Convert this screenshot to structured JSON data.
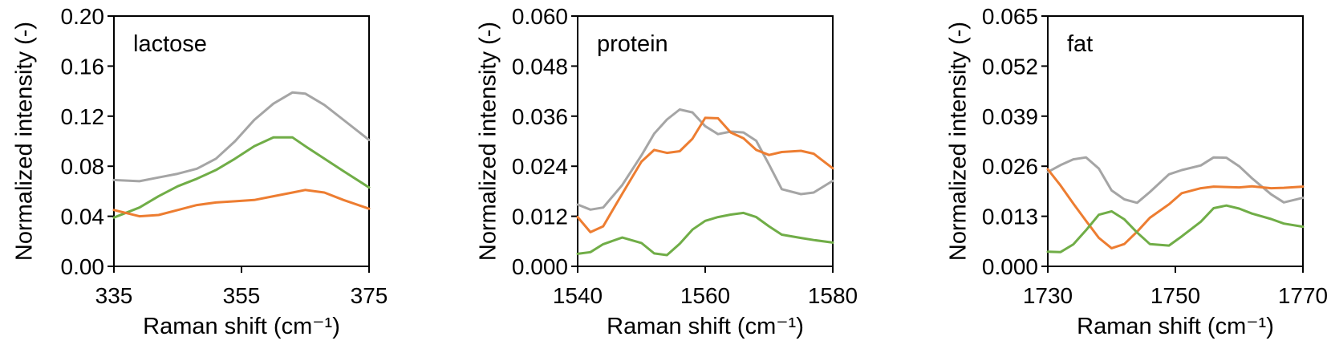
{
  "chart_data": [
    {
      "type": "line",
      "annotation": "lactose",
      "xlabel": "Raman shift (cm⁻¹)",
      "ylabel": "Normalized intensity (-)",
      "xlim": [
        335,
        375
      ],
      "ylim": [
        0,
        0.2
      ],
      "xticks": [
        "335",
        "355",
        "375"
      ],
      "yticks": [
        "0.00",
        "0.04",
        "0.08",
        "0.12",
        "0.16",
        "0.20"
      ],
      "series": [
        {
          "color": "#a5a5a5",
          "x": [
            335,
            339,
            342,
            345,
            348,
            351,
            354,
            357,
            360,
            363,
            365,
            368,
            371,
            375
          ],
          "y": [
            0.069,
            0.068,
            0.071,
            0.074,
            0.078,
            0.086,
            0.1,
            0.117,
            0.13,
            0.139,
            0.138,
            0.129,
            0.117,
            0.101
          ]
        },
        {
          "color": "#70ad47",
          "x": [
            335,
            339,
            342,
            345,
            348,
            351,
            354,
            357,
            360,
            363,
            365,
            368,
            371,
            375
          ],
          "y": [
            0.039,
            0.047,
            0.056,
            0.064,
            0.07,
            0.077,
            0.086,
            0.096,
            0.103,
            0.103,
            0.096,
            0.086,
            0.076,
            0.063
          ]
        },
        {
          "color": "#ed7d31",
          "x": [
            335,
            339,
            342,
            345,
            348,
            351,
            354,
            357,
            360,
            363,
            365,
            368,
            371,
            375
          ],
          "y": [
            0.045,
            0.04,
            0.041,
            0.045,
            0.049,
            0.051,
            0.052,
            0.053,
            0.056,
            0.059,
            0.061,
            0.059,
            0.053,
            0.046
          ]
        }
      ]
    },
    {
      "type": "line",
      "annotation": "protein",
      "xlabel": "Raman shift (cm⁻¹)",
      "ylabel": "Normalized intensity (-)",
      "xlim": [
        1540,
        1580
      ],
      "ylim": [
        0,
        0.06
      ],
      "xticks": [
        "1540",
        "1560",
        "1580"
      ],
      "yticks": [
        "0.000",
        "0.012",
        "0.024",
        "0.036",
        "0.048",
        "0.060"
      ],
      "series": [
        {
          "color": "#a5a5a5",
          "x": [
            1540,
            1542,
            1544,
            1547,
            1550,
            1552,
            1554,
            1556,
            1558,
            1560,
            1562,
            1564,
            1566,
            1568,
            1570,
            1572,
            1575,
            1577,
            1580
          ],
          "y": [
            0.0148,
            0.0136,
            0.0141,
            0.0195,
            0.0266,
            0.0318,
            0.0352,
            0.0376,
            0.0369,
            0.0336,
            0.0317,
            0.0323,
            0.0321,
            0.0301,
            0.0244,
            0.0185,
            0.0173,
            0.0177,
            0.0205
          ]
        },
        {
          "color": "#ed7d31",
          "x": [
            1540,
            1542,
            1544,
            1547,
            1550,
            1552,
            1554,
            1556,
            1558,
            1560,
            1562,
            1564,
            1566,
            1568,
            1570,
            1572,
            1575,
            1577,
            1580
          ],
          "y": [
            0.0118,
            0.0082,
            0.0096,
            0.0174,
            0.0251,
            0.0279,
            0.0272,
            0.0276,
            0.0306,
            0.0356,
            0.0355,
            0.0321,
            0.0307,
            0.0279,
            0.0267,
            0.0274,
            0.0277,
            0.027,
            0.0235
          ]
        },
        {
          "color": "#70ad47",
          "x": [
            1540,
            1542,
            1544,
            1547,
            1550,
            1552,
            1554,
            1556,
            1558,
            1560,
            1562,
            1564,
            1566,
            1568,
            1570,
            1572,
            1575,
            1577,
            1580
          ],
          "y": [
            0.003,
            0.0034,
            0.0053,
            0.0069,
            0.0056,
            0.0031,
            0.0027,
            0.0054,
            0.0088,
            0.0109,
            0.0118,
            0.0124,
            0.0128,
            0.0118,
            0.0096,
            0.0076,
            0.0068,
            0.0063,
            0.0057
          ]
        }
      ]
    },
    {
      "type": "line",
      "annotation": "fat",
      "xlabel": "Raman shift (cm⁻¹)",
      "ylabel": "Normalized intensity (-)",
      "xlim": [
        1730,
        1770
      ],
      "ylim": [
        0,
        0.065
      ],
      "xticks": [
        "1730",
        "1750",
        "1770"
      ],
      "yticks": [
        "0.000",
        "0.013",
        "0.026",
        "0.039",
        "0.052",
        "0.065"
      ],
      "series": [
        {
          "color": "#a5a5a5",
          "x": [
            1730,
            1732,
            1734,
            1736,
            1738,
            1740,
            1742,
            1744,
            1746,
            1749,
            1751,
            1754,
            1756,
            1758,
            1760,
            1762,
            1765,
            1767,
            1770
          ],
          "y": [
            0.0245,
            0.0263,
            0.0278,
            0.0283,
            0.0254,
            0.0197,
            0.0174,
            0.0165,
            0.0193,
            0.0239,
            0.025,
            0.0262,
            0.0283,
            0.0282,
            0.026,
            0.0229,
            0.0187,
            0.0166,
            0.0178
          ]
        },
        {
          "color": "#ed7d31",
          "x": [
            1730,
            1732,
            1734,
            1736,
            1738,
            1740,
            1742,
            1744,
            1746,
            1749,
            1751,
            1754,
            1756,
            1758,
            1760,
            1762,
            1765,
            1767,
            1770
          ],
          "y": [
            0.0252,
            0.021,
            0.0163,
            0.0118,
            0.0074,
            0.0047,
            0.0058,
            0.009,
            0.0126,
            0.0161,
            0.019,
            0.0203,
            0.0207,
            0.0206,
            0.0205,
            0.0208,
            0.0203,
            0.0204,
            0.0207
          ]
        },
        {
          "color": "#70ad47",
          "x": [
            1730,
            1732,
            1734,
            1736,
            1738,
            1740,
            1742,
            1744,
            1746,
            1749,
            1751,
            1754,
            1756,
            1758,
            1760,
            1762,
            1765,
            1767,
            1770
          ],
          "y": [
            0.0038,
            0.0037,
            0.0057,
            0.0094,
            0.0134,
            0.0143,
            0.0122,
            0.0088,
            0.0058,
            0.0054,
            0.0078,
            0.0116,
            0.0151,
            0.0158,
            0.015,
            0.0137,
            0.0123,
            0.0111,
            0.0103
          ]
        }
      ]
    }
  ]
}
